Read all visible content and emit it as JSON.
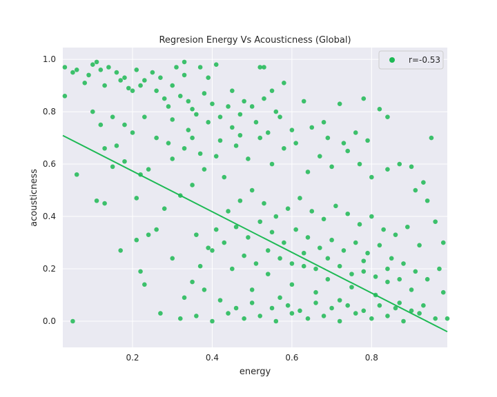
{
  "chart_data": {
    "type": "scatter",
    "title": "Regresion Energy Vs Acousticness (Global)",
    "xlabel": "energy",
    "ylabel": "acousticness",
    "xlim": [
      0.025,
      0.99
    ],
    "ylim": [
      -0.1,
      1.045
    ],
    "xticks": [
      0.2,
      0.4,
      0.6,
      0.8
    ],
    "xtick_labels": [
      "0.2",
      "0.4",
      "0.6",
      "0.8"
    ],
    "yticks": [
      0.0,
      0.2,
      0.4,
      0.6,
      0.8,
      1.0
    ],
    "ytick_labels": [
      "0.0",
      "0.2",
      "0.4",
      "0.6",
      "0.8",
      "1.0"
    ],
    "grid": true,
    "legend": {
      "position": "top-right",
      "entries": [
        "r=-0.53"
      ]
    },
    "series": [
      {
        "name": "r=-0.53",
        "color": "#1db954",
        "values": [
          [
            0.03,
            0.97
          ],
          [
            0.03,
            0.86
          ],
          [
            0.05,
            0.95
          ],
          [
            0.06,
            0.96
          ],
          [
            0.08,
            0.91
          ],
          [
            0.09,
            0.94
          ],
          [
            0.1,
            0.98
          ],
          [
            0.11,
            0.99
          ],
          [
            0.12,
            0.96
          ],
          [
            0.13,
            0.9
          ],
          [
            0.14,
            0.97
          ],
          [
            0.16,
            0.95
          ],
          [
            0.17,
            0.92
          ],
          [
            0.18,
            0.93
          ],
          [
            0.19,
            0.89
          ],
          [
            0.2,
            0.88
          ],
          [
            0.21,
            0.96
          ],
          [
            0.22,
            0.9
          ],
          [
            0.23,
            0.92
          ],
          [
            0.25,
            0.95
          ],
          [
            0.26,
            0.88
          ],
          [
            0.27,
            0.93
          ],
          [
            0.28,
            0.85
          ],
          [
            0.3,
            0.9
          ],
          [
            0.31,
            0.97
          ],
          [
            0.33,
            0.99
          ],
          [
            0.34,
            0.84
          ],
          [
            0.37,
            0.97
          ],
          [
            0.39,
            0.93
          ],
          [
            0.41,
            0.98
          ],
          [
            0.52,
            0.97
          ],
          [
            0.53,
            0.97
          ],
          [
            0.1,
            0.8
          ],
          [
            0.12,
            0.75
          ],
          [
            0.15,
            0.78
          ],
          [
            0.16,
            0.67
          ],
          [
            0.13,
            0.66
          ],
          [
            0.15,
            0.59
          ],
          [
            0.18,
            0.75
          ],
          [
            0.2,
            0.72
          ],
          [
            0.23,
            0.78
          ],
          [
            0.26,
            0.7
          ],
          [
            0.29,
            0.68
          ],
          [
            0.34,
            0.73
          ],
          [
            0.36,
            0.79
          ],
          [
            0.39,
            0.76
          ],
          [
            0.44,
            0.82
          ],
          [
            0.48,
            0.84
          ],
          [
            0.55,
            0.88
          ],
          [
            0.58,
            0.91
          ],
          [
            0.6,
            0.73
          ],
          [
            0.63,
            0.84
          ],
          [
            0.68,
            0.76
          ],
          [
            0.72,
            0.83
          ],
          [
            0.78,
            0.85
          ],
          [
            0.82,
            0.81
          ],
          [
            0.84,
            0.78
          ],
          [
            0.06,
            0.56
          ],
          [
            0.11,
            0.46
          ],
          [
            0.13,
            0.45
          ],
          [
            0.18,
            0.61
          ],
          [
            0.21,
            0.47
          ],
          [
            0.22,
            0.56
          ],
          [
            0.24,
            0.58
          ],
          [
            0.17,
            0.27
          ],
          [
            0.21,
            0.31
          ],
          [
            0.24,
            0.33
          ],
          [
            0.22,
            0.19
          ],
          [
            0.23,
            0.14
          ],
          [
            0.27,
            0.03
          ],
          [
            0.05,
            0.0
          ],
          [
            0.26,
            0.35
          ],
          [
            0.28,
            0.43
          ],
          [
            0.3,
            0.24
          ],
          [
            0.32,
            0.48
          ],
          [
            0.35,
            0.52
          ],
          [
            0.38,
            0.58
          ],
          [
            0.41,
            0.63
          ],
          [
            0.43,
            0.55
          ],
          [
            0.46,
            0.67
          ],
          [
            0.49,
            0.62
          ],
          [
            0.52,
            0.7
          ],
          [
            0.55,
            0.6
          ],
          [
            0.58,
            0.66
          ],
          [
            0.61,
            0.68
          ],
          [
            0.64,
            0.57
          ],
          [
            0.67,
            0.63
          ],
          [
            0.7,
            0.59
          ],
          [
            0.74,
            0.65
          ],
          [
            0.77,
            0.6
          ],
          [
            0.8,
            0.55
          ],
          [
            0.84,
            0.58
          ],
          [
            0.87,
            0.6
          ],
          [
            0.9,
            0.59
          ],
          [
            0.93,
            0.53
          ],
          [
            0.95,
            0.7
          ],
          [
            0.91,
            0.5
          ],
          [
            0.94,
            0.46
          ],
          [
            0.96,
            0.38
          ],
          [
            0.98,
            0.3
          ],
          [
            0.97,
            0.2
          ],
          [
            0.98,
            0.11
          ],
          [
            0.99,
            0.01
          ],
          [
            0.33,
            0.09
          ],
          [
            0.35,
            0.15
          ],
          [
            0.37,
            0.21
          ],
          [
            0.39,
            0.28
          ],
          [
            0.41,
            0.35
          ],
          [
            0.44,
            0.42
          ],
          [
            0.47,
            0.46
          ],
          [
            0.5,
            0.5
          ],
          [
            0.53,
            0.45
          ],
          [
            0.56,
            0.4
          ],
          [
            0.59,
            0.43
          ],
          [
            0.62,
            0.47
          ],
          [
            0.65,
            0.42
          ],
          [
            0.68,
            0.39
          ],
          [
            0.71,
            0.44
          ],
          [
            0.74,
            0.41
          ],
          [
            0.77,
            0.37
          ],
          [
            0.8,
            0.4
          ],
          [
            0.83,
            0.35
          ],
          [
            0.86,
            0.33
          ],
          [
            0.89,
            0.36
          ],
          [
            0.92,
            0.29
          ],
          [
            0.36,
            0.33
          ],
          [
            0.4,
            0.27
          ],
          [
            0.43,
            0.3
          ],
          [
            0.46,
            0.36
          ],
          [
            0.49,
            0.32
          ],
          [
            0.52,
            0.38
          ],
          [
            0.55,
            0.34
          ],
          [
            0.58,
            0.3
          ],
          [
            0.61,
            0.35
          ],
          [
            0.64,
            0.32
          ],
          [
            0.67,
            0.28
          ],
          [
            0.7,
            0.31
          ],
          [
            0.73,
            0.27
          ],
          [
            0.76,
            0.3
          ],
          [
            0.79,
            0.26
          ],
          [
            0.82,
            0.29
          ],
          [
            0.85,
            0.24
          ],
          [
            0.88,
            0.22
          ],
          [
            0.91,
            0.19
          ],
          [
            0.94,
            0.16
          ],
          [
            0.32,
            0.01
          ],
          [
            0.36,
            0.02
          ],
          [
            0.4,
            0.0
          ],
          [
            0.44,
            0.03
          ],
          [
            0.48,
            0.01
          ],
          [
            0.52,
            0.02
          ],
          [
            0.56,
            0.0
          ],
          [
            0.6,
            0.03
          ],
          [
            0.64,
            0.01
          ],
          [
            0.68,
            0.02
          ],
          [
            0.72,
            0.0
          ],
          [
            0.76,
            0.03
          ],
          [
            0.8,
            0.01
          ],
          [
            0.84,
            0.02
          ],
          [
            0.88,
            0.0
          ],
          [
            0.92,
            0.03
          ],
          [
            0.96,
            0.01
          ],
          [
            0.5,
            0.12
          ],
          [
            0.54,
            0.18
          ],
          [
            0.57,
            0.09
          ],
          [
            0.6,
            0.14
          ],
          [
            0.63,
            0.21
          ],
          [
            0.66,
            0.11
          ],
          [
            0.69,
            0.16
          ],
          [
            0.72,
            0.08
          ],
          [
            0.75,
            0.13
          ],
          [
            0.78,
            0.19
          ],
          [
            0.81,
            0.1
          ],
          [
            0.84,
            0.15
          ],
          [
            0.87,
            0.07
          ],
          [
            0.9,
            0.12
          ],
          [
            0.93,
            0.06
          ],
          [
            0.45,
            0.2
          ],
          [
            0.48,
            0.25
          ],
          [
            0.51,
            0.22
          ],
          [
            0.54,
            0.27
          ],
          [
            0.57,
            0.24
          ],
          [
            0.6,
            0.22
          ],
          [
            0.63,
            0.26
          ],
          [
            0.66,
            0.2
          ],
          [
            0.69,
            0.24
          ],
          [
            0.72,
            0.21
          ],
          [
            0.75,
            0.18
          ],
          [
            0.78,
            0.23
          ],
          [
            0.81,
            0.17
          ],
          [
            0.84,
            0.2
          ],
          [
            0.87,
            0.16
          ],
          [
            0.38,
            0.12
          ],
          [
            0.42,
            0.08
          ],
          [
            0.46,
            0.05
          ],
          [
            0.5,
            0.07
          ],
          [
            0.55,
            0.05
          ],
          [
            0.59,
            0.06
          ],
          [
            0.62,
            0.04
          ],
          [
            0.66,
            0.07
          ],
          [
            0.7,
            0.05
          ],
          [
            0.74,
            0.06
          ],
          [
            0.78,
            0.04
          ],
          [
            0.82,
            0.06
          ],
          [
            0.86,
            0.05
          ],
          [
            0.9,
            0.04
          ],
          [
            0.3,
            0.62
          ],
          [
            0.33,
            0.66
          ],
          [
            0.35,
            0.7
          ],
          [
            0.37,
            0.64
          ],
          [
            0.42,
            0.69
          ],
          [
            0.45,
            0.74
          ],
          [
            0.47,
            0.71
          ],
          [
            0.51,
            0.76
          ],
          [
            0.54,
            0.72
          ],
          [
            0.57,
            0.78
          ],
          [
            0.65,
            0.74
          ],
          [
            0.69,
            0.7
          ],
          [
            0.73,
            0.68
          ],
          [
            0.76,
            0.72
          ],
          [
            0.79,
            0.69
          ],
          [
            0.33,
            0.94
          ],
          [
            0.29,
            0.82
          ],
          [
            0.3,
            0.77
          ],
          [
            0.32,
            0.86
          ],
          [
            0.35,
            0.81
          ],
          [
            0.38,
            0.87
          ],
          [
            0.4,
            0.83
          ],
          [
            0.42,
            0.78
          ],
          [
            0.45,
            0.88
          ],
          [
            0.47,
            0.79
          ],
          [
            0.5,
            0.82
          ],
          [
            0.53,
            0.85
          ],
          [
            0.56,
            0.8
          ]
        ]
      }
    ],
    "regression": {
      "x": [
        0.025,
        0.99
      ],
      "y": [
        0.709,
        -0.04
      ]
    }
  }
}
